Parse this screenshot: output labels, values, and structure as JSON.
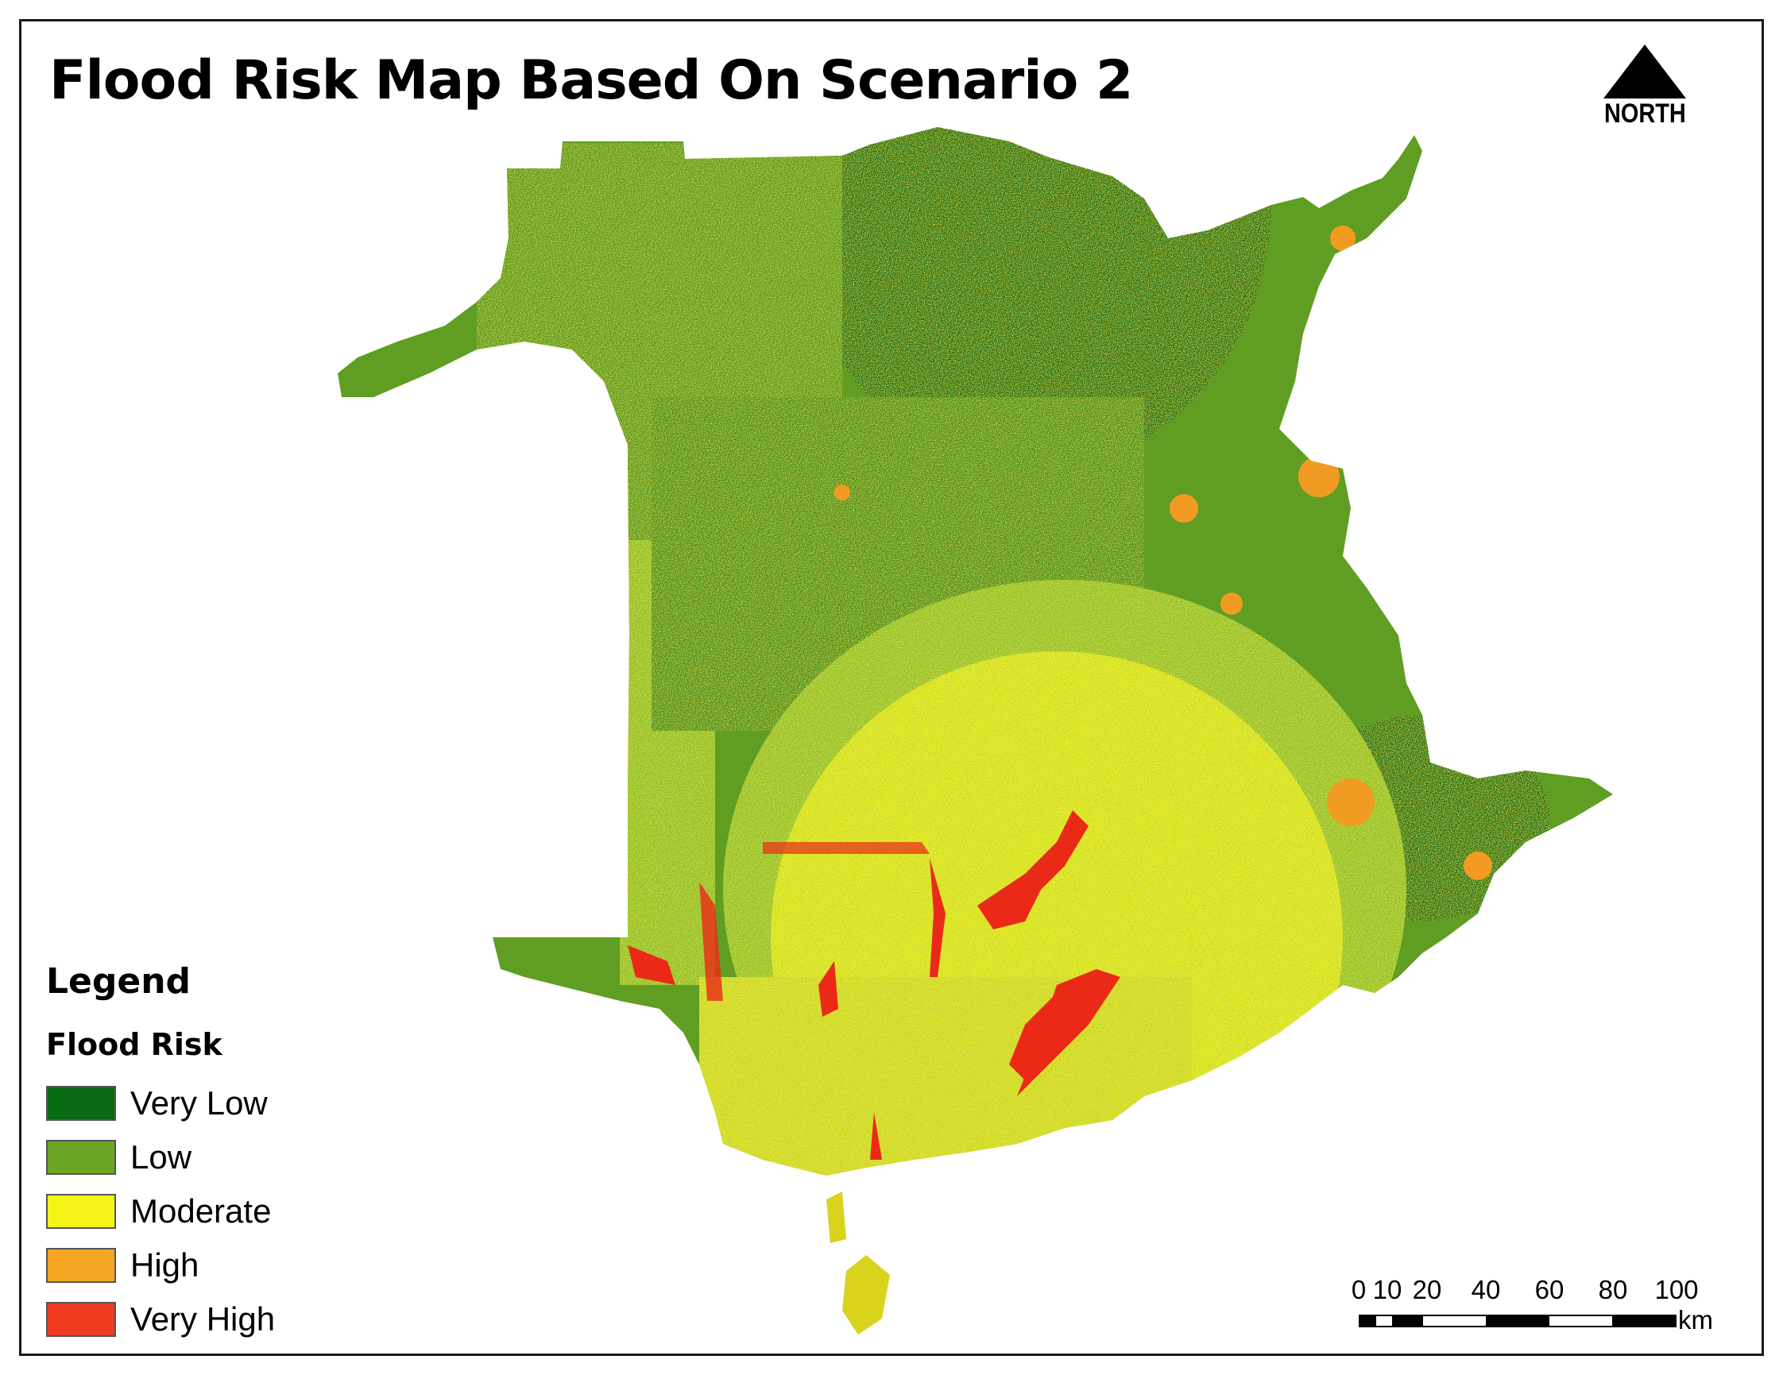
{
  "title": "Flood Risk Map Based On Scenario 2",
  "north_arrow": {
    "label": "NORTH"
  },
  "legend": {
    "title": "Legend",
    "subtitle": "Flood Risk",
    "items": [
      {
        "label": "Very Low",
        "color": "#0a6b14"
      },
      {
        "label": "Low",
        "color": "#6aa625"
      },
      {
        "label": "Moderate",
        "color": "#f5f51a"
      },
      {
        "label": "High",
        "color": "#f5a623"
      },
      {
        "label": "Very High",
        "color": "#ef3b1f"
      }
    ]
  },
  "scale_bar": {
    "ticks": [
      "0",
      "10",
      "20",
      "40",
      "60",
      "80",
      "100"
    ],
    "unit": "km"
  }
}
